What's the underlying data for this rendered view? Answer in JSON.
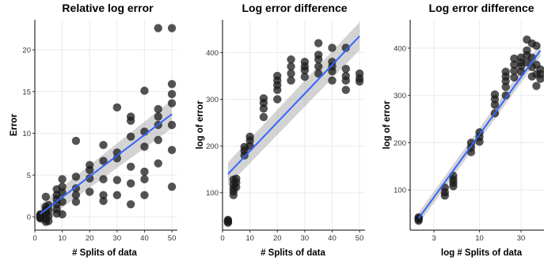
{
  "chart_data": [
    {
      "type": "scatter",
      "title": "Relative log error",
      "xlabel": "# Splits of data",
      "ylabel": "Error",
      "x_scale": "linear",
      "xlim": [
        0,
        52
      ],
      "ylim": [
        -1.6,
        23.6
      ],
      "x_ticks": [
        0,
        10,
        20,
        30,
        40,
        50
      ],
      "y_ticks": [
        0,
        5,
        10,
        15,
        20
      ],
      "grid": true,
      "points": [
        {
          "x": 2,
          "y": 0.0
        },
        {
          "x": 2,
          "y": 0.2
        },
        {
          "x": 2,
          "y": -0.1
        },
        {
          "x": 2,
          "y": 0.3
        },
        {
          "x": 2,
          "y": 0.1
        },
        {
          "x": 2,
          "y": -0.2
        },
        {
          "x": 4,
          "y": 2.4
        },
        {
          "x": 4,
          "y": 1.2
        },
        {
          "x": 4,
          "y": 0.3
        },
        {
          "x": 4,
          "y": 0.6
        },
        {
          "x": 4,
          "y": -0.3
        },
        {
          "x": 4,
          "y": -0.6
        },
        {
          "x": 4,
          "y": 0.9
        },
        {
          "x": 5,
          "y": 1.4
        },
        {
          "x": 5,
          "y": 0.1
        },
        {
          "x": 5,
          "y": -0.5
        },
        {
          "x": 5,
          "y": 0.8
        },
        {
          "x": 8,
          "y": 3.3
        },
        {
          "x": 8,
          "y": 2.6
        },
        {
          "x": 8,
          "y": 2.1
        },
        {
          "x": 8,
          "y": 1.5
        },
        {
          "x": 8,
          "y": 0.9
        },
        {
          "x": 8,
          "y": 0.4
        },
        {
          "x": 10,
          "y": 4.5
        },
        {
          "x": 10,
          "y": 3.6
        },
        {
          "x": 10,
          "y": 2.9
        },
        {
          "x": 10,
          "y": 1.8
        },
        {
          "x": 10,
          "y": 0.3
        },
        {
          "x": 15,
          "y": 9.1
        },
        {
          "x": 15,
          "y": 4.8
        },
        {
          "x": 15,
          "y": 3.4
        },
        {
          "x": 15,
          "y": 2.6
        },
        {
          "x": 15,
          "y": 1.8
        },
        {
          "x": 20,
          "y": 6.2
        },
        {
          "x": 20,
          "y": 5.6
        },
        {
          "x": 20,
          "y": 4.6
        },
        {
          "x": 20,
          "y": 3.0
        },
        {
          "x": 25,
          "y": 8.6
        },
        {
          "x": 25,
          "y": 6.7
        },
        {
          "x": 25,
          "y": 4.5
        },
        {
          "x": 25,
          "y": 2.6
        },
        {
          "x": 25,
          "y": 1.9
        },
        {
          "x": 30,
          "y": 13.1
        },
        {
          "x": 30,
          "y": 7.7
        },
        {
          "x": 30,
          "y": 7.0
        },
        {
          "x": 30,
          "y": 4.4
        },
        {
          "x": 30,
          "y": 2.6
        },
        {
          "x": 35,
          "y": 12.0
        },
        {
          "x": 35,
          "y": 11.5
        },
        {
          "x": 35,
          "y": 9.6
        },
        {
          "x": 35,
          "y": 6.0
        },
        {
          "x": 35,
          "y": 4.0
        },
        {
          "x": 35,
          "y": 1.5
        },
        {
          "x": 40,
          "y": 15.1
        },
        {
          "x": 40,
          "y": 10.2
        },
        {
          "x": 40,
          "y": 8.4
        },
        {
          "x": 40,
          "y": 5.4
        },
        {
          "x": 40,
          "y": 4.5
        },
        {
          "x": 40,
          "y": 2.6
        },
        {
          "x": 45,
          "y": 22.6
        },
        {
          "x": 45,
          "y": 12.9
        },
        {
          "x": 45,
          "y": 12.0
        },
        {
          "x": 45,
          "y": 11.0
        },
        {
          "x": 45,
          "y": 9.2
        },
        {
          "x": 45,
          "y": 6.4
        },
        {
          "x": 50,
          "y": 22.6
        },
        {
          "x": 50,
          "y": 15.9
        },
        {
          "x": 50,
          "y": 14.7
        },
        {
          "x": 50,
          "y": 13.6
        },
        {
          "x": 50,
          "y": 11.0
        },
        {
          "x": 50,
          "y": 8.0
        },
        {
          "x": 50,
          "y": 3.6
        }
      ],
      "fit": {
        "x": [
          2,
          50
        ],
        "y": [
          0.35,
          12.3
        ],
        "band_lo": [
          -0.8,
          10.6
        ],
        "band_hi": [
          1.5,
          14.0
        ]
      }
    },
    {
      "type": "scatter",
      "title": "Log error difference",
      "xlabel": "# Splits of data",
      "ylabel": "log of error",
      "x_scale": "linear",
      "xlim": [
        0,
        52
      ],
      "ylim": [
        20,
        470
      ],
      "x_ticks": [
        0,
        10,
        20,
        30,
        40,
        50
      ],
      "y_ticks": [
        100,
        200,
        300,
        400
      ],
      "grid": true,
      "points": [
        {
          "x": 2,
          "y": 42
        },
        {
          "x": 2,
          "y": 38
        },
        {
          "x": 2,
          "y": 36
        },
        {
          "x": 2,
          "y": 40
        },
        {
          "x": 4,
          "y": 128
        },
        {
          "x": 4,
          "y": 118
        },
        {
          "x": 4,
          "y": 110
        },
        {
          "x": 4,
          "y": 103
        },
        {
          "x": 4,
          "y": 95
        },
        {
          "x": 5,
          "y": 130
        },
        {
          "x": 5,
          "y": 122
        },
        {
          "x": 5,
          "y": 112
        },
        {
          "x": 8,
          "y": 198
        },
        {
          "x": 8,
          "y": 190
        },
        {
          "x": 8,
          "y": 180
        },
        {
          "x": 10,
          "y": 220
        },
        {
          "x": 10,
          "y": 212
        },
        {
          "x": 10,
          "y": 200
        },
        {
          "x": 15,
          "y": 302
        },
        {
          "x": 15,
          "y": 292
        },
        {
          "x": 15,
          "y": 280
        },
        {
          "x": 15,
          "y": 262
        },
        {
          "x": 20,
          "y": 350
        },
        {
          "x": 20,
          "y": 340
        },
        {
          "x": 20,
          "y": 330
        },
        {
          "x": 20,
          "y": 320
        },
        {
          "x": 20,
          "y": 300
        },
        {
          "x": 25,
          "y": 385
        },
        {
          "x": 25,
          "y": 370
        },
        {
          "x": 25,
          "y": 355
        },
        {
          "x": 25,
          "y": 340
        },
        {
          "x": 30,
          "y": 380
        },
        {
          "x": 30,
          "y": 370
        },
        {
          "x": 30,
          "y": 362
        },
        {
          "x": 30,
          "y": 348
        },
        {
          "x": 35,
          "y": 420
        },
        {
          "x": 35,
          "y": 395
        },
        {
          "x": 35,
          "y": 385
        },
        {
          "x": 35,
          "y": 370
        },
        {
          "x": 35,
          "y": 355
        },
        {
          "x": 40,
          "y": 410
        },
        {
          "x": 40,
          "y": 380
        },
        {
          "x": 40,
          "y": 370
        },
        {
          "x": 40,
          "y": 360
        },
        {
          "x": 40,
          "y": 340
        },
        {
          "x": 45,
          "y": 410
        },
        {
          "x": 45,
          "y": 365
        },
        {
          "x": 45,
          "y": 350
        },
        {
          "x": 45,
          "y": 340
        },
        {
          "x": 45,
          "y": 320
        },
        {
          "x": 50,
          "y": 355
        },
        {
          "x": 50,
          "y": 345
        },
        {
          "x": 50,
          "y": 338
        }
      ],
      "fit": {
        "x": [
          2,
          50
        ],
        "y": [
          140,
          435
        ],
        "band_lo": [
          115,
          405
        ],
        "band_hi": [
          165,
          465
        ]
      }
    },
    {
      "type": "scatter",
      "title": "Log error difference",
      "xlabel": "log # Splits of data",
      "ylabel": "log of error",
      "x_scale": "log",
      "xlim": [
        1.6,
        55
      ],
      "ylim": [
        15,
        460
      ],
      "x_ticks": [
        3,
        10,
        30
      ],
      "y_ticks": [
        100,
        200,
        300,
        400
      ],
      "grid": true,
      "points": [
        {
          "x": 2,
          "y": 42
        },
        {
          "x": 2,
          "y": 38
        },
        {
          "x": 2,
          "y": 35
        },
        {
          "x": 2,
          "y": 40
        },
        {
          "x": 4,
          "y": 105
        },
        {
          "x": 4,
          "y": 95
        },
        {
          "x": 4,
          "y": 88
        },
        {
          "x": 5,
          "y": 130
        },
        {
          "x": 5,
          "y": 122
        },
        {
          "x": 5,
          "y": 115
        },
        {
          "x": 5,
          "y": 108
        },
        {
          "x": 8,
          "y": 200
        },
        {
          "x": 8,
          "y": 190
        },
        {
          "x": 8,
          "y": 180
        },
        {
          "x": 10,
          "y": 222
        },
        {
          "x": 10,
          "y": 212
        },
        {
          "x": 10,
          "y": 202
        },
        {
          "x": 15,
          "y": 302
        },
        {
          "x": 15,
          "y": 292
        },
        {
          "x": 15,
          "y": 280
        },
        {
          "x": 15,
          "y": 262
        },
        {
          "x": 20,
          "y": 350
        },
        {
          "x": 20,
          "y": 340
        },
        {
          "x": 20,
          "y": 330
        },
        {
          "x": 20,
          "y": 318
        },
        {
          "x": 20,
          "y": 300
        },
        {
          "x": 25,
          "y": 378
        },
        {
          "x": 25,
          "y": 365
        },
        {
          "x": 25,
          "y": 352
        },
        {
          "x": 25,
          "y": 338
        },
        {
          "x": 30,
          "y": 380
        },
        {
          "x": 30,
          "y": 370
        },
        {
          "x": 30,
          "y": 362
        },
        {
          "x": 30,
          "y": 350
        },
        {
          "x": 35,
          "y": 418
        },
        {
          "x": 35,
          "y": 395
        },
        {
          "x": 35,
          "y": 385
        },
        {
          "x": 35,
          "y": 370
        },
        {
          "x": 40,
          "y": 410
        },
        {
          "x": 40,
          "y": 380
        },
        {
          "x": 40,
          "y": 360
        },
        {
          "x": 40,
          "y": 340
        },
        {
          "x": 45,
          "y": 405
        },
        {
          "x": 45,
          "y": 365
        },
        {
          "x": 45,
          "y": 345
        },
        {
          "x": 45,
          "y": 320
        },
        {
          "x": 50,
          "y": 355
        },
        {
          "x": 50,
          "y": 345
        },
        {
          "x": 50,
          "y": 335
        }
      ],
      "fit": {
        "x": [
          2,
          50
        ],
        "y": [
          40,
          395
        ],
        "band_lo": [
          28,
          383
        ],
        "band_hi": [
          52,
          410
        ]
      }
    }
  ]
}
